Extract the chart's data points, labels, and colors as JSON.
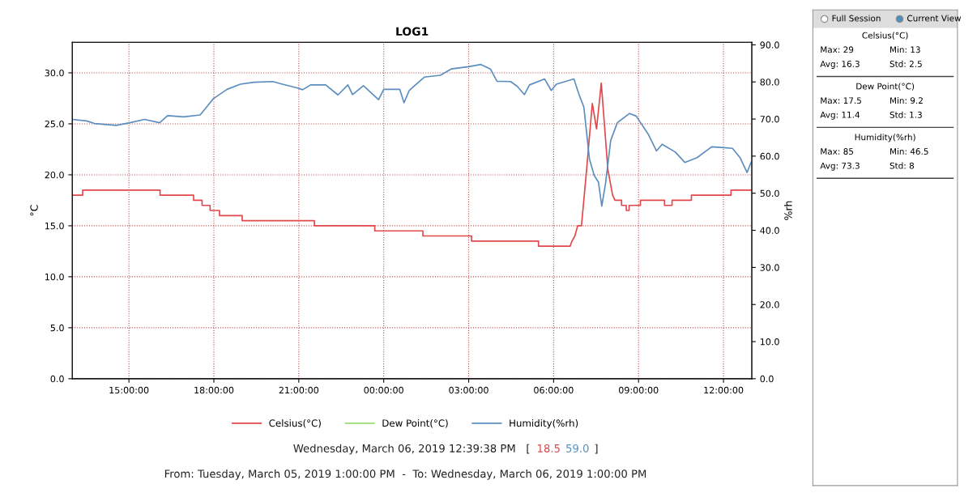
{
  "chart_data": [
    {
      "type": "line",
      "title": "LOG1",
      "ylabel": "°C",
      "y2label": "%rh",
      "xlim": [
        "2019-03-05T13:00",
        "2019-03-06T13:00"
      ],
      "xticks": [
        {
          "value": "2019-03-05T15:00",
          "label": "15:00:00"
        },
        {
          "value": "2019-03-05T18:00",
          "label": "18:00:00"
        },
        {
          "value": "2019-03-05T21:00",
          "label": "21:00:00"
        },
        {
          "value": "2019-03-06T00:00",
          "label": "00:00:00"
        },
        {
          "value": "2019-03-06T03:00",
          "label": "03:00:00"
        },
        {
          "value": "2019-03-06T06:00",
          "label": "06:00:00"
        },
        {
          "value": "2019-03-06T09:00",
          "label": "09:00:00"
        },
        {
          "value": "2019-03-06T12:00",
          "label": "12:00:00"
        }
      ],
      "ylim": [
        0,
        33
      ],
      "yticks": [
        {
          "value": 0,
          "label": "0.0"
        },
        {
          "value": 5,
          "label": "5.0"
        },
        {
          "value": 10,
          "label": "10.0"
        },
        {
          "value": 15,
          "label": "15.0"
        },
        {
          "value": 20,
          "label": "20.0"
        },
        {
          "value": 25,
          "label": "25.0"
        },
        {
          "value": 30,
          "label": "30.0"
        }
      ],
      "y2lim": [
        0,
        90.7
      ],
      "y2ticks": [
        {
          "value": 0,
          "label": "0.0"
        },
        {
          "value": 10,
          "label": "10.0"
        },
        {
          "value": 20,
          "label": "20.0"
        },
        {
          "value": 30,
          "label": "30.0"
        },
        {
          "value": 40,
          "label": "40.0"
        },
        {
          "value": 50,
          "label": "50.0"
        },
        {
          "value": 60,
          "label": "60.0"
        },
        {
          "value": 70,
          "label": "70.0"
        },
        {
          "value": 80,
          "label": "80.0"
        },
        {
          "value": 90,
          "label": "90.0"
        }
      ],
      "grid": true,
      "legend": "bottom",
      "marker": "none",
      "line_style": "solid",
      "series": [
        {
          "name": "Celsius(°C)",
          "color": "#e2474b",
          "x": [
            "2019-03-05T13:00",
            "2019-03-05T13:22",
            "2019-03-05T13:22",
            "2019-03-05T16:06",
            "2019-03-05T16:06",
            "2019-03-05T17:17",
            "2019-03-05T17:17",
            "2019-03-05T17:35",
            "2019-03-05T17:35",
            "2019-03-05T17:52",
            "2019-03-05T17:52",
            "2019-03-05T18:12",
            "2019-03-05T18:12",
            "2019-03-05T19:00",
            "2019-03-05T19:00",
            "2019-03-05T21:33",
            "2019-03-05T21:33",
            "2019-03-05T23:41",
            "2019-03-05T23:41",
            "2019-03-06T01:23",
            "2019-03-06T01:23",
            "2019-03-06T03:06",
            "2019-03-06T03:06",
            "2019-03-06T05:28",
            "2019-03-06T05:28",
            "2019-03-06T06:35",
            "2019-03-06T06:39",
            "2019-03-06T06:45",
            "2019-03-06T06:51",
            "2019-03-06T06:59",
            "2019-03-06T07:09",
            "2019-03-06T07:22",
            "2019-03-06T07:31",
            "2019-03-06T07:41",
            "2019-03-06T07:55",
            "2019-03-06T08:05",
            "2019-03-06T08:10",
            "2019-03-06T08:24",
            "2019-03-06T08:24",
            "2019-03-06T08:34",
            "2019-03-06T08:34",
            "2019-03-06T08:40",
            "2019-03-06T08:40",
            "2019-03-06T09:04",
            "2019-03-06T09:04",
            "2019-03-06T09:55",
            "2019-03-06T09:55",
            "2019-03-06T10:11",
            "2019-03-06T10:11",
            "2019-03-06T10:52",
            "2019-03-06T10:52",
            "2019-03-06T12:16",
            "2019-03-06T12:16",
            "2019-03-06T13:00"
          ],
          "values": [
            18.0,
            18.0,
            18.5,
            18.5,
            18.0,
            18.0,
            17.5,
            17.5,
            17.0,
            17.0,
            16.5,
            16.5,
            16.0,
            16.0,
            15.5,
            15.5,
            15.0,
            15.0,
            14.5,
            14.5,
            14.0,
            14.0,
            13.5,
            13.5,
            13.0,
            13.0,
            13.5,
            14.0,
            15.0,
            15.0,
            20.0,
            27.0,
            24.5,
            29.0,
            20.5,
            18.0,
            17.5,
            17.5,
            17.0,
            17.0,
            16.5,
            16.5,
            17.0,
            17.0,
            17.5,
            17.5,
            17.0,
            17.0,
            17.5,
            17.5,
            18.0,
            18.0,
            18.5,
            18.5
          ]
        },
        {
          "name": "Dew Point(°C)",
          "color": "#99dd77"
        },
        {
          "name": "Humidity(%rh)",
          "color": "#5b8ebf",
          "axis": "y2",
          "x": [
            "2019-03-05T13:00",
            "2019-03-05T13:30",
            "2019-03-05T13:47",
            "2019-03-05T14:33",
            "2019-03-05T15:02",
            "2019-03-05T15:33",
            "2019-03-05T16:05",
            "2019-03-05T16:22",
            "2019-03-05T16:56",
            "2019-03-05T17:31",
            "2019-03-05T17:59",
            "2019-03-05T18:28",
            "2019-03-05T18:56",
            "2019-03-05T19:25",
            "2019-03-05T20:05",
            "2019-03-05T20:22",
            "2019-03-05T20:56",
            "2019-03-05T21:08",
            "2019-03-05T21:25",
            "2019-03-05T21:57",
            "2019-03-05T22:23",
            "2019-03-05T22:44",
            "2019-03-05T22:54",
            "2019-03-05T23:17",
            "2019-03-05T23:49",
            "2019-03-06T00:00",
            "2019-03-06T00:34",
            "2019-03-06T00:43",
            "2019-03-06T00:54",
            "2019-03-06T01:26",
            "2019-03-06T02:00",
            "2019-03-06T02:23",
            "2019-03-06T03:00",
            "2019-03-06T03:26",
            "2019-03-06T03:46",
            "2019-03-06T04:00",
            "2019-03-06T04:29",
            "2019-03-06T04:43",
            "2019-03-06T04:58",
            "2019-03-06T05:09",
            "2019-03-06T05:41",
            "2019-03-06T05:55",
            "2019-03-06T06:06",
            "2019-03-06T06:43",
            "2019-03-06T06:55",
            "2019-03-06T07:04",
            "2019-03-06T07:16",
            "2019-03-06T07:26",
            "2019-03-06T07:35",
            "2019-03-06T07:42",
            "2019-03-06T07:50",
            "2019-03-06T08:01",
            "2019-03-06T08:15",
            "2019-03-06T08:41",
            "2019-03-06T08:55",
            "2019-03-06T09:21",
            "2019-03-06T09:38",
            "2019-03-06T09:50",
            "2019-03-06T10:18",
            "2019-03-06T10:38",
            "2019-03-06T11:04",
            "2019-03-06T11:35",
            "2019-03-06T12:01",
            "2019-03-06T12:19",
            "2019-03-06T12:35",
            "2019-03-06T12:50",
            "2019-03-06T12:59"
          ],
          "values": [
            69.9,
            69.5,
            68.8,
            68.3,
            69.0,
            69.9,
            69.0,
            70.9,
            70.6,
            71.1,
            75.5,
            78.0,
            79.4,
            79.9,
            80.1,
            79.5,
            78.4,
            77.9,
            79.2,
            79.2,
            76.5,
            79.2,
            76.6,
            79.0,
            75.2,
            78.0,
            78.0,
            74.4,
            77.7,
            81.3,
            81.8,
            83.5,
            84.1,
            84.7,
            83.5,
            80.2,
            80.1,
            78.8,
            76.6,
            79.2,
            80.8,
            77.7,
            79.4,
            80.8,
            76.2,
            73.3,
            59.2,
            54.8,
            53.0,
            46.5,
            52.6,
            64.2,
            69.0,
            71.5,
            70.8,
            65.8,
            61.4,
            63.2,
            61.1,
            58.3,
            59.6,
            62.5,
            62.3,
            62.1,
            59.6,
            55.6,
            58.5
          ]
        }
      ],
      "annotations": [
        "Wednesday, March 06, 2019 12:39:38 PM   [",
        "18.5",
        "59.0",
        "]",
        "From: Tuesday, March 05, 2019 1:00:00 PM  -  To: Wednesday, March 06, 2019 1:00:00 PM"
      ]
    },
    {
      "type": "other",
      "annotations": [
        "Full Session",
        "Current View",
        "Celsius(°C)",
        "Max: 29",
        "Min: 13",
        "Avg: 16.3",
        "Std: 2.5",
        "Dew Point(°C)",
        "Max: 17.5",
        "Min: 9.2",
        "Avg: 11.4",
        "Std: 1.3",
        "Humidity(%rh)",
        "Max: 85",
        "Min: 46.5",
        "Avg: 73.3",
        "Std: 8"
      ]
    }
  ]
}
